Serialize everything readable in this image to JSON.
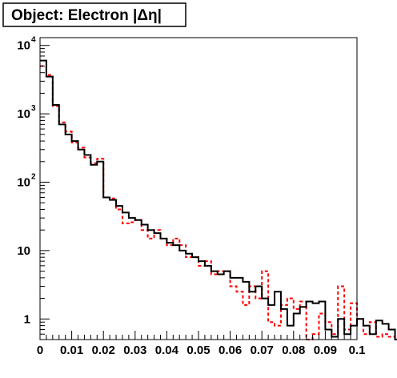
{
  "chart_data": {
    "type": "histogram",
    "title": "Object: Electron |Δη|",
    "xlabel": "",
    "ylabel": "",
    "xlim": [
      0,
      0.1
    ],
    "ylim": [
      0.5,
      13000
    ],
    "y_scale": "log",
    "grid": false,
    "legend": "none",
    "x_ticks": [
      0,
      0.01,
      0.02,
      0.03,
      0.04,
      0.05,
      0.06,
      0.07,
      0.08,
      0.09,
      0.1
    ],
    "x_tick_labels": [
      "0",
      "0.01",
      "0.02",
      "0.03",
      "0.04",
      "0.05",
      "0.06",
      "0.07",
      "0.08",
      "0.09",
      "0.1"
    ],
    "y_ticks": [
      {
        "value": 1,
        "base": "1",
        "exp": ""
      },
      {
        "value": 10,
        "base": "10",
        "exp": ""
      },
      {
        "value": 100,
        "base": "10",
        "exp": "2"
      },
      {
        "value": 1000,
        "base": "10",
        "exp": "3"
      },
      {
        "value": 10000,
        "base": "10",
        "exp": "4"
      }
    ],
    "bin_width": 0.002,
    "series": [
      {
        "style": "solid",
        "color": "#000000",
        "values": [
          6000,
          3500,
          1350,
          700,
          500,
          400,
          300,
          250,
          180,
          200,
          60,
          55,
          45,
          36,
          30,
          28,
          24,
          20,
          18,
          15,
          13,
          12,
          10,
          9,
          8,
          7,
          6,
          5,
          4.5,
          5,
          4,
          4,
          3.5,
          2.5,
          3,
          2,
          1.6,
          2.5,
          1.4,
          0.8,
          1.2,
          1.5,
          1.8,
          1.7,
          1.8,
          0.7,
          0.55,
          1.0,
          0.6,
          0.8,
          1.0,
          0.8,
          0.6,
          0.95,
          0.85,
          0.7,
          0.5,
          0.55,
          0.6,
          0.55
        ]
      },
      {
        "style": "dashed",
        "color": "#ff0000",
        "values": [
          5000,
          3700,
          1300,
          750,
          550,
          380,
          320,
          230,
          190,
          220,
          60,
          58,
          40,
          25,
          26,
          28,
          20,
          15,
          20,
          15,
          12,
          15,
          12,
          8,
          8,
          6,
          7,
          4.5,
          5,
          5,
          3,
          2.5,
          1.6,
          3,
          2,
          5,
          0.9,
          0.8,
          1.6,
          2,
          1.4,
          1.8,
          0.5,
          0.6,
          1.2,
          0.9,
          0.6,
          3,
          0.7,
          1.7,
          1.0,
          0.6,
          0.9,
          0.55,
          0.6,
          0.55,
          0.5,
          0.5,
          0.5,
          0.5
        ]
      }
    ]
  }
}
